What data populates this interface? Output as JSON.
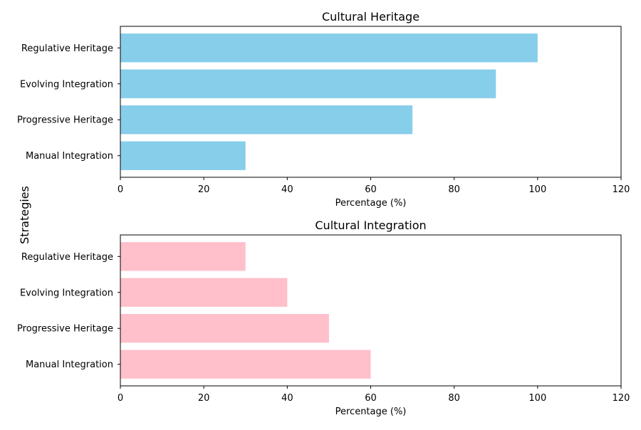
{
  "figure": {
    "ylabel": "Strategies"
  },
  "chart_data": [
    {
      "type": "bar",
      "orientation": "horizontal",
      "title": "Cultural Heritage",
      "categories": [
        "Manual Integration",
        "Progressive Heritage",
        "Evolving Integration",
        "Regulative Heritage"
      ],
      "values": [
        30,
        70,
        90,
        100
      ],
      "color": "#87ceeb",
      "xlabel": "Percentage (%)",
      "xlim": [
        0,
        120
      ],
      "xticks": [
        0,
        20,
        40,
        60,
        80,
        100,
        120
      ],
      "grid": false
    },
    {
      "type": "bar",
      "orientation": "horizontal",
      "title": "Cultural Integration",
      "categories": [
        "Manual Integration",
        "Progressive Heritage",
        "Evolving Integration",
        "Regulative Heritage"
      ],
      "values": [
        60,
        50,
        40,
        30
      ],
      "color": "#ffc0cb",
      "xlabel": "Percentage (%)",
      "xlim": [
        0,
        120
      ],
      "xticks": [
        0,
        20,
        40,
        60,
        80,
        100,
        120
      ],
      "grid": false
    }
  ]
}
